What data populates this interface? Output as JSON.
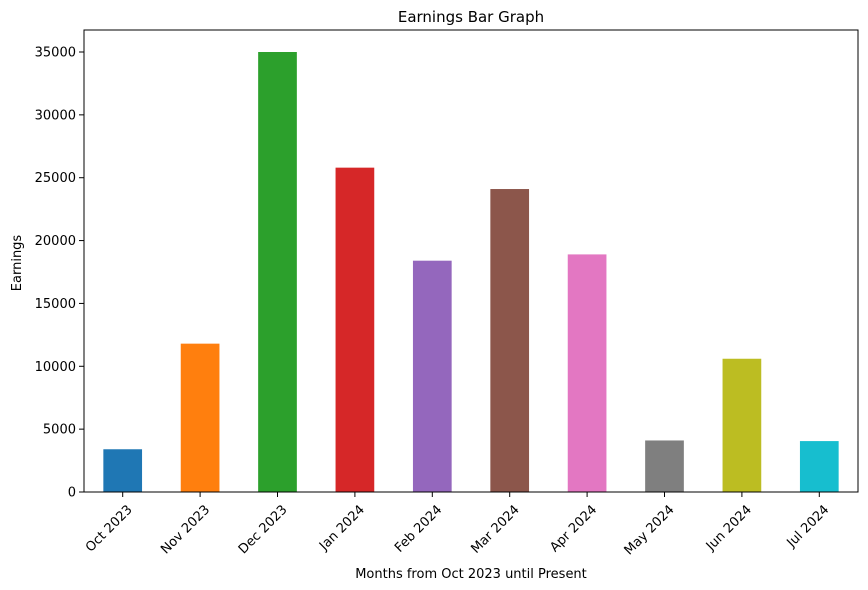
{
  "chart_data": {
    "type": "bar",
    "title": "Earnings Bar Graph",
    "xlabel": "Months from Oct 2023 until Present",
    "ylabel": "Earnings",
    "categories": [
      "Oct 2023",
      "Nov 2023",
      "Dec 2023",
      "Jan 2024",
      "Feb 2024",
      "Mar 2024",
      "Apr 2024",
      "May 2024",
      "Jun 2024",
      "Jul 2024"
    ],
    "values": [
      3400,
      11800,
      35000,
      25800,
      18400,
      24100,
      18900,
      4100,
      10600,
      4050
    ],
    "colors": [
      "#1f77b4",
      "#ff7f0e",
      "#2ca02c",
      "#d62728",
      "#9467bd",
      "#8c564b",
      "#e377c2",
      "#7f7f7f",
      "#bcbd22",
      "#17becf"
    ],
    "ylim": [
      0,
      36750
    ],
    "yticks": [
      0,
      5000,
      10000,
      15000,
      20000,
      25000,
      30000,
      35000
    ],
    "grid": false,
    "legend": false
  }
}
